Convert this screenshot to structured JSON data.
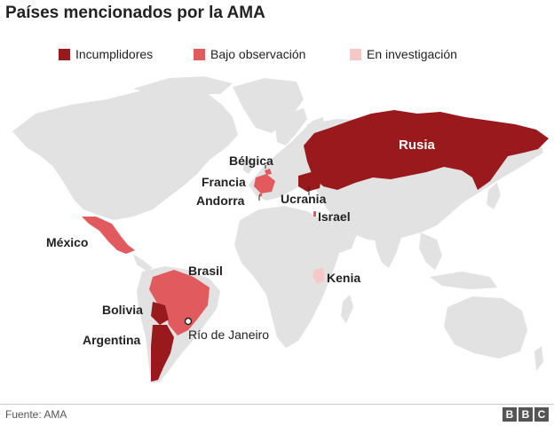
{
  "title": "Países mencionados por la AMA",
  "legend": [
    {
      "label": "Incumplidores",
      "color": "#99191c"
    },
    {
      "label": "Bajo observación",
      "color": "#e05a5e"
    },
    {
      "label": "En investigación",
      "color": "#f6c8c8"
    }
  ],
  "colors": {
    "land": "#e2e2e2",
    "background": "#ffffff"
  },
  "labels": {
    "russia": "Rusia",
    "belgium": "Bélgica",
    "france": "Francia",
    "andorra": "Andorra",
    "ukraine": "Ucrania",
    "israel": "Israel",
    "mexico": "México",
    "brazil": "Brasil",
    "kenya": "Kenia",
    "bolivia": "Bolivia",
    "rio": "Río de Janeiro",
    "argentina": "Argentina"
  },
  "source": "Fuente: AMA",
  "logo": [
    "B",
    "B",
    "C"
  ]
}
